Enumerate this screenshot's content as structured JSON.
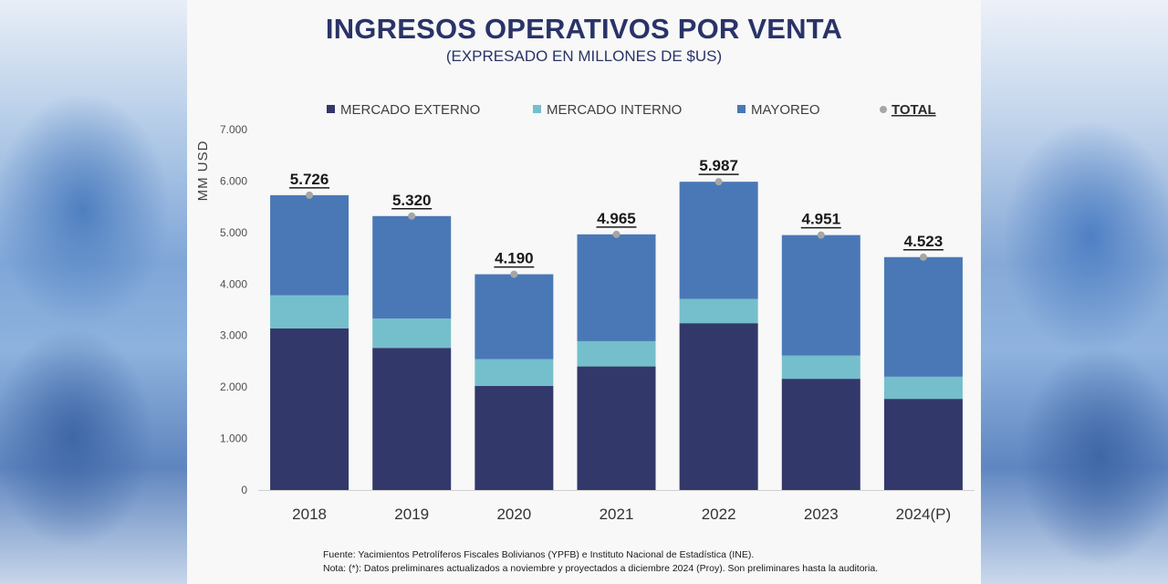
{
  "colors": {
    "mercado_externo": "#33386a",
    "mercado_interno": "#74bfcb",
    "mayoreo": "#4a78b6",
    "total_marker": "#a6a6a6",
    "title": "#2a3368"
  },
  "header": {
    "title": "INGRESOS OPERATIVOS POR VENTA",
    "subtitle": "(EXPRESADO EN MILLONES DE $US)"
  },
  "footer": {
    "source": "Fuente: Yacimientos Petrolíferos Fiscales Bolivianos (YPFB) e Instituto Nacional de Estadística (INE).",
    "note": "Nota: (*): Datos preliminares actualizados a noviembre y proyectados a diciembre 2024 (Proy). Son preliminares hasta la auditoria."
  },
  "chart_data": {
    "type": "bar",
    "stacked": true,
    "title": "INGRESOS OPERATIVOS POR VENTA",
    "subtitle": "(EXPRESADO EN MILLONES DE $US)",
    "xlabel": "",
    "ylabel": "MM USD",
    "ylim": [
      0,
      7000
    ],
    "yticks": [
      0,
      1000,
      2000,
      3000,
      4000,
      5000,
      6000,
      7000
    ],
    "ytick_labels": [
      "0",
      "1.000",
      "2.000",
      "3.000",
      "4.000",
      "5.000",
      "6.000",
      "7.000"
    ],
    "grid": false,
    "legend_position": "top",
    "categories": [
      "2018",
      "2019",
      "2020",
      "2021",
      "2022",
      "2023",
      "2024(P)"
    ],
    "series": [
      {
        "name": "MERCADO EXTERNO",
        "color": "#33386a",
        "values": [
          3140,
          2760,
          2020,
          2400,
          3240,
          2160,
          1770
        ]
      },
      {
        "name": "MERCADO INTERNO",
        "color": "#74bfcb",
        "values": [
          640,
          570,
          520,
          490,
          470,
          450,
          430
        ]
      },
      {
        "name": "MAYOREO",
        "color": "#4a78b6",
        "values": [
          1946,
          1990,
          1650,
          2075,
          2277,
          2341,
          2323
        ]
      }
    ],
    "total": {
      "name": "TOTAL",
      "values": [
        5726,
        5320,
        4190,
        4965,
        5987,
        4951,
        4523
      ],
      "labels": [
        "5.726",
        "5.320",
        "4.190",
        "4.965",
        "5.987",
        "4.951",
        "4.523"
      ]
    }
  }
}
